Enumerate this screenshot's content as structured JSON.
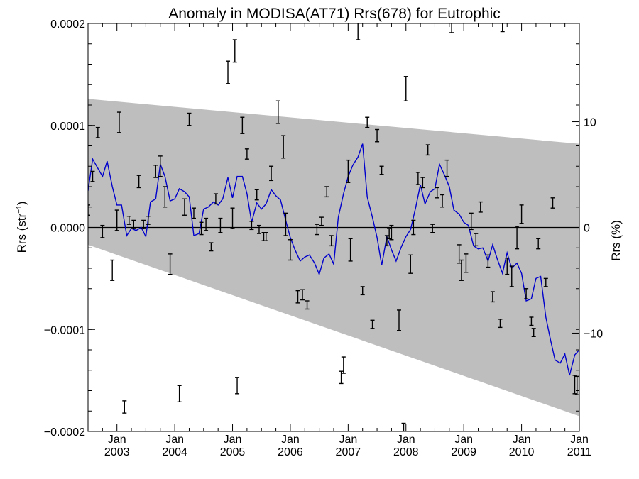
{
  "chart_data": {
    "type": "scatter",
    "title": "Anomaly in MODISA(AT71) Rrs(678) for Eutrophic",
    "ylabel_base": "Rrs (str",
    "ylabel_sup": "−1",
    "ylabel_close": ")",
    "y2label": "Rrs (%)",
    "xlim": [
      2002.5,
      2011.0
    ],
    "ylim": [
      -0.0002,
      0.0002
    ],
    "y2lim": [
      -19.3,
      19.3
    ],
    "y_tick_values": [
      -0.0002,
      -0.0001,
      0.0,
      0.0001,
      0.0002
    ],
    "y_tick_labels": [
      "−0.0002",
      "−0.0001",
      "0.0000",
      "0.0001",
      "0.0002"
    ],
    "y2_tick_values": [
      -10,
      0,
      10
    ],
    "y2_tick_labels": [
      "−10",
      "0",
      "10"
    ],
    "x_tick_values": [
      2003,
      2004,
      2005,
      2006,
      2007,
      2008,
      2009,
      2010,
      2011
    ],
    "x_tick_month": [
      "Jan",
      "Jan",
      "Jan",
      "Jan",
      "Jan",
      "Jan",
      "Jan",
      "Jan",
      "Jan"
    ],
    "x_tick_year": [
      "2003",
      "2004",
      "2005",
      "2006",
      "2007",
      "2008",
      "2009",
      "2010",
      "2011"
    ],
    "uncertainty_band": {
      "x": [
        2002.5,
        2011.0
      ],
      "upper": [
        0.000126,
        8.2e-05
      ],
      "lower": [
        -1.7e-05,
        -0.000185
      ],
      "color": "#bebebe"
    },
    "zero_line": 0.0,
    "series": [
      {
        "style": "errorbar",
        "color": "#000000",
        "points": [
          {
            "x": 2002.5,
            "y": 1.7e-05,
            "err": 5e-06
          },
          {
            "x": 2002.58,
            "y": 5e-05,
            "err": 5e-06
          },
          {
            "x": 2002.67,
            "y": 9.3e-05,
            "err": 5e-06
          },
          {
            "x": 2002.75,
            "y": -4e-06,
            "err": 6e-06
          },
          {
            "x": 2002.92,
            "y": -4.2e-05,
            "err": 1e-05
          },
          {
            "x": 2003.0,
            "y": 7e-06,
            "err": 1e-05
          },
          {
            "x": 2003.04,
            "y": 0.000103,
            "err": 1e-05
          },
          {
            "x": 2003.13,
            "y": -0.000176,
            "err": 6e-06
          },
          {
            "x": 2003.21,
            "y": 7e-06,
            "err": 4e-06
          },
          {
            "x": 2003.29,
            "y": 3e-06,
            "err": 4e-06
          },
          {
            "x": 2003.38,
            "y": 4.5e-05,
            "err": 6e-06
          },
          {
            "x": 2003.46,
            "y": 3e-06,
            "err": 4e-06
          },
          {
            "x": 2003.54,
            "y": 7e-06,
            "err": 4e-06
          },
          {
            "x": 2003.67,
            "y": 5.5e-05,
            "err": 6e-06
          },
          {
            "x": 2003.75,
            "y": 6e-05,
            "err": 1e-05
          },
          {
            "x": 2003.83,
            "y": 3e-05,
            "err": 1e-05
          },
          {
            "x": 2003.92,
            "y": -3.6e-05,
            "err": 1e-05
          },
          {
            "x": 2004.08,
            "y": -0.000163,
            "err": 8e-06
          },
          {
            "x": 2004.17,
            "y": 2e-05,
            "err": 8e-06
          },
          {
            "x": 2004.25,
            "y": 0.000106,
            "err": 6e-06
          },
          {
            "x": 2004.33,
            "y": 1.4e-05,
            "err": 5e-06
          },
          {
            "x": 2004.46,
            "y": -1e-06,
            "err": 6e-06
          },
          {
            "x": 2004.54,
            "y": 3e-06,
            "err": 6e-06
          },
          {
            "x": 2004.63,
            "y": -1.9e-05,
            "err": 4e-06
          },
          {
            "x": 2004.71,
            "y": 2.8e-05,
            "err": 5e-06
          },
          {
            "x": 2004.79,
            "y": 2e-06,
            "err": 7e-06
          },
          {
            "x": 2004.92,
            "y": 0.000152,
            "err": 1.1e-05
          },
          {
            "x": 2005.0,
            "y": 9e-06,
            "err": 1e-05
          },
          {
            "x": 2005.04,
            "y": 0.000173,
            "err": 1.1e-05
          },
          {
            "x": 2005.08,
            "y": -0.000155,
            "err": 8e-06
          },
          {
            "x": 2005.17,
            "y": 0.0001,
            "err": 8e-06
          },
          {
            "x": 2005.25,
            "y": 7.2e-05,
            "err": 5e-06
          },
          {
            "x": 2005.33,
            "y": 2e-06,
            "err": 4e-06
          },
          {
            "x": 2005.42,
            "y": 3.2e-05,
            "err": 5e-06
          },
          {
            "x": 2005.46,
            "y": -2e-06,
            "err": 4e-06
          },
          {
            "x": 2005.54,
            "y": -9e-06,
            "err": 4e-06
          },
          {
            "x": 2005.58,
            "y": -9e-06,
            "err": 4e-06
          },
          {
            "x": 2005.67,
            "y": 5.3e-05,
            "err": 7e-06
          },
          {
            "x": 2005.79,
            "y": 0.000113,
            "err": 1.1e-05
          },
          {
            "x": 2005.88,
            "y": 7.9e-05,
            "err": 1.1e-05
          },
          {
            "x": 2005.92,
            "y": 3e-06,
            "err": 1.1e-05
          },
          {
            "x": 2006.0,
            "y": -2.2e-05,
            "err": 1e-05
          },
          {
            "x": 2006.13,
            "y": -6.8e-05,
            "err": 6e-06
          },
          {
            "x": 2006.21,
            "y": -6.6e-05,
            "err": 5e-06
          },
          {
            "x": 2006.29,
            "y": -7.6e-05,
            "err": 4e-06
          },
          {
            "x": 2006.46,
            "y": -2e-06,
            "err": 5e-06
          },
          {
            "x": 2006.54,
            "y": 6e-06,
            "err": 4e-06
          },
          {
            "x": 2006.63,
            "y": 3.5e-05,
            "err": 5e-06
          },
          {
            "x": 2006.71,
            "y": -1.3e-05,
            "err": 5e-06
          },
          {
            "x": 2006.88,
            "y": -0.000147,
            "err": 6e-06
          },
          {
            "x": 2006.92,
            "y": -0.000135,
            "err": 8e-06
          },
          {
            "x": 2007.0,
            "y": 5.5e-05,
            "err": 1.1e-05
          },
          {
            "x": 2007.04,
            "y": -2.2e-05,
            "err": 1.1e-05
          },
          {
            "x": 2007.17,
            "y": 0.000194,
            "err": 1e-05
          },
          {
            "x": 2007.25,
            "y": -6.2e-05,
            "err": 4e-06
          },
          {
            "x": 2007.33,
            "y": 0.000103,
            "err": 5e-06
          },
          {
            "x": 2007.42,
            "y": -9.5e-05,
            "err": 4e-06
          },
          {
            "x": 2007.5,
            "y": 9e-05,
            "err": 6e-06
          },
          {
            "x": 2007.58,
            "y": 5.6e-05,
            "err": 4e-06
          },
          {
            "x": 2007.67,
            "y": -1.3e-05,
            "err": 5e-06
          },
          {
            "x": 2007.71,
            "y": -6e-06,
            "err": 5e-06
          },
          {
            "x": 2007.75,
            "y": -5e-06,
            "err": 7e-06
          },
          {
            "x": 2007.88,
            "y": -9.1e-05,
            "err": 1e-05
          },
          {
            "x": 2007.96,
            "y": -0.000198,
            "err": 6e-06
          },
          {
            "x": 2008.0,
            "y": 0.000136,
            "err": 1.2e-05
          },
          {
            "x": 2008.08,
            "y": -3.6e-05,
            "err": 9e-06
          },
          {
            "x": 2008.13,
            "y": -0.0,
            "err": 7e-06
          },
          {
            "x": 2008.21,
            "y": 4.8e-05,
            "err": 6e-06
          },
          {
            "x": 2008.29,
            "y": 4.4e-05,
            "err": 5e-06
          },
          {
            "x": 2008.38,
            "y": 7.6e-05,
            "err": 5e-06
          },
          {
            "x": 2008.46,
            "y": -1e-06,
            "err": 4e-06
          },
          {
            "x": 2008.54,
            "y": 3.4e-05,
            "err": 5e-06
          },
          {
            "x": 2008.63,
            "y": 2.6e-05,
            "err": 6e-06
          },
          {
            "x": 2008.71,
            "y": 5.8e-05,
            "err": 8e-06
          },
          {
            "x": 2008.79,
            "y": 0.000198,
            "err": 7e-06
          },
          {
            "x": 2008.92,
            "y": -2.6e-05,
            "err": 9e-06
          },
          {
            "x": 2008.96,
            "y": -4.2e-05,
            "err": 1e-05
          },
          {
            "x": 2009.04,
            "y": -3.5e-05,
            "err": 9e-06
          },
          {
            "x": 2009.13,
            "y": 6e-06,
            "err": 8e-06
          },
          {
            "x": 2009.21,
            "y": -1.2e-05,
            "err": 6e-06
          },
          {
            "x": 2009.29,
            "y": 2e-05,
            "err": 5e-06
          },
          {
            "x": 2009.42,
            "y": -3.3e-05,
            "err": 6e-06
          },
          {
            "x": 2009.5,
            "y": -6.8e-05,
            "err": 5e-06
          },
          {
            "x": 2009.63,
            "y": -9.4e-05,
            "err": 4e-06
          },
          {
            "x": 2009.67,
            "y": 0.000198,
            "err": 6e-06
          },
          {
            "x": 2009.75,
            "y": -3.8e-05,
            "err": 8e-06
          },
          {
            "x": 2009.83,
            "y": -4.8e-05,
            "err": 1e-05
          },
          {
            "x": 2009.92,
            "y": -1e-05,
            "err": 1.1e-05
          },
          {
            "x": 2010.0,
            "y": 1.3e-05,
            "err": 9e-06
          },
          {
            "x": 2010.08,
            "y": -6.5e-05,
            "err": 5e-06
          },
          {
            "x": 2010.17,
            "y": -9.2e-05,
            "err": 4e-06
          },
          {
            "x": 2010.21,
            "y": -0.000103,
            "err": 4e-06
          },
          {
            "x": 2010.29,
            "y": -1.6e-05,
            "err": 5e-06
          },
          {
            "x": 2010.42,
            "y": -5.4e-05,
            "err": 4e-06
          },
          {
            "x": 2010.54,
            "y": 2.4e-05,
            "err": 5e-06
          },
          {
            "x": 2010.92,
            "y": -0.000154,
            "err": 9e-06
          },
          {
            "x": 2010.96,
            "y": -0.000155,
            "err": 9e-06
          }
        ]
      },
      {
        "style": "line",
        "color": "#0000cc",
        "x": [
          2002.5,
          2002.58,
          2002.67,
          2002.75,
          2002.83,
          2002.92,
          2003.0,
          2003.08,
          2003.17,
          2003.25,
          2003.33,
          2003.42,
          2003.5,
          2003.58,
          2003.67,
          2003.75,
          2003.83,
          2003.92,
          2004.0,
          2004.08,
          2004.17,
          2004.25,
          2004.33,
          2004.42,
          2004.5,
          2004.58,
          2004.67,
          2004.75,
          2004.83,
          2004.92,
          2005.0,
          2005.08,
          2005.17,
          2005.25,
          2005.33,
          2005.42,
          2005.5,
          2005.58,
          2005.67,
          2005.75,
          2005.83,
          2005.92,
          2006.0,
          2006.08,
          2006.17,
          2006.25,
          2006.33,
          2006.42,
          2006.5,
          2006.58,
          2006.67,
          2006.75,
          2006.83,
          2006.92,
          2007.0,
          2007.08,
          2007.17,
          2007.25,
          2007.33,
          2007.42,
          2007.5,
          2007.58,
          2007.67,
          2007.75,
          2007.83,
          2007.92,
          2008.0,
          2008.08,
          2008.17,
          2008.25,
          2008.33,
          2008.42,
          2008.5,
          2008.58,
          2008.67,
          2008.75,
          2008.83,
          2008.92,
          2009.0,
          2009.08,
          2009.17,
          2009.25,
          2009.33,
          2009.42,
          2009.5,
          2009.58,
          2009.67,
          2009.75,
          2009.83,
          2009.92,
          2010.0,
          2010.08,
          2010.17,
          2010.25,
          2010.33,
          2010.42,
          2010.5,
          2010.58,
          2010.67,
          2010.75,
          2010.83,
          2010.92,
          2011.0
        ],
        "y": [
          3.6e-05,
          6.7e-05,
          5.8e-05,
          5e-05,
          6.5e-05,
          4e-05,
          2.2e-05,
          2.2e-05,
          -8e-06,
          -1e-06,
          -3e-06,
          0.0,
          -9e-06,
          2.5e-05,
          2.8e-05,
          6.2e-05,
          5e-05,
          2.6e-05,
          2.8e-05,
          3.8e-05,
          3.5e-05,
          3e-05,
          -8e-06,
          -6e-06,
          1.8e-05,
          2e-05,
          2.5e-05,
          2.2e-05,
          2.8e-05,
          4.9e-05,
          2.9e-05,
          5e-05,
          5e-05,
          3.3e-05,
          5e-06,
          2.4e-05,
          1.8e-05,
          2.3e-05,
          3.7e-05,
          3.1e-05,
          2.7e-05,
          7e-06,
          -1e-05,
          -2.2e-05,
          -3.3e-05,
          -2.9e-05,
          -2.7e-05,
          -3.5e-05,
          -4.6e-05,
          -3e-05,
          -2.6e-05,
          -3.6e-05,
          1e-05,
          3.3e-05,
          5e-05,
          6.1e-05,
          6.9e-05,
          8.2e-05,
          3e-05,
          1e-05,
          -1e-05,
          -3.7e-05,
          -9e-06,
          -2.2e-05,
          -3.3e-05,
          -1.9e-05,
          -9e-06,
          -2e-06,
          2e-05,
          4.2e-05,
          2.3e-05,
          3.5e-05,
          3.8e-05,
          6.2e-05,
          5.1e-05,
          4e-05,
          1.7e-05,
          1.3e-05,
          5e-06,
          2e-06,
          -1.8e-05,
          -2.1e-05,
          -2e-05,
          -3.3e-05,
          -1.7e-05,
          -3.1e-05,
          -4.5e-05,
          -2.5e-05,
          -4e-05,
          -3.5e-05,
          -4.5e-05,
          -7.2e-05,
          -7e-05,
          -5e-05,
          -4.8e-05,
          -8.8e-05,
          -0.00011,
          -0.00013,
          -0.000133,
          -0.000124,
          -0.000145,
          -0.000125,
          -0.00012
        ]
      }
    ]
  }
}
